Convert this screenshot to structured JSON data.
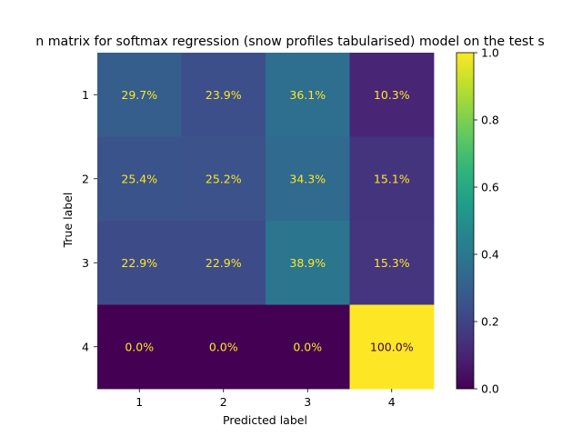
{
  "chart_data": {
    "type": "heatmap",
    "title": "n matrix for softmax regression (snow profiles tabularised) model on the test s",
    "xlabel": "Predicted label",
    "ylabel": "True label",
    "x_categories": [
      "1",
      "2",
      "3",
      "4"
    ],
    "y_categories": [
      "1",
      "2",
      "3",
      "4"
    ],
    "values": [
      [
        0.297,
        0.239,
        0.361,
        0.103
      ],
      [
        0.254,
        0.252,
        0.343,
        0.151
      ],
      [
        0.229,
        0.229,
        0.389,
        0.153
      ],
      [
        0.0,
        0.0,
        0.0,
        1.0
      ]
    ],
    "cell_labels": [
      [
        "29.7%",
        "23.9%",
        "36.1%",
        "10.3%"
      ],
      [
        "25.4%",
        "25.2%",
        "34.3%",
        "15.1%"
      ],
      [
        "22.9%",
        "22.9%",
        "38.9%",
        "15.3%"
      ],
      [
        "0.0%",
        "0.0%",
        "0.0%",
        "100.0%"
      ]
    ],
    "colorbar": {
      "colormap": "viridis",
      "range": [
        0.0,
        1.0
      ],
      "ticks": [
        "0.0",
        "0.2",
        "0.4",
        "0.6",
        "0.8",
        "1.0"
      ]
    },
    "label_colors": {
      "on_dark": "#fde725",
      "on_light": "#440154"
    },
    "grid": false
  }
}
